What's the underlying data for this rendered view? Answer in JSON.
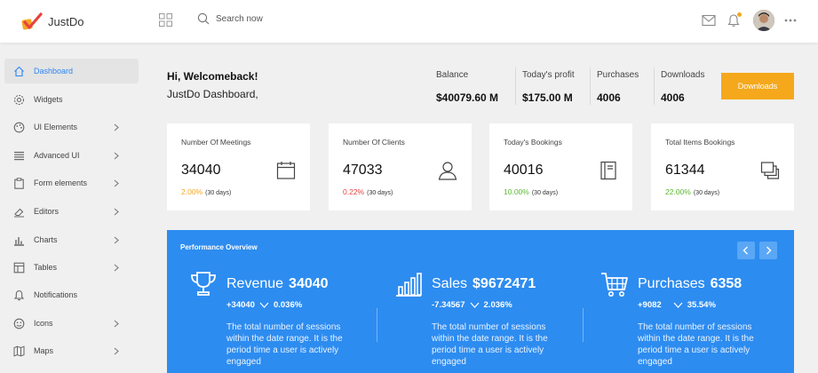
{
  "brand": {
    "name": "JustDo"
  },
  "search": {
    "placeholder": "Search now"
  },
  "sidebar": {
    "items": [
      {
        "label": "Dashboard",
        "icon": "home-icon"
      },
      {
        "label": "Widgets",
        "icon": "gear-icon"
      },
      {
        "label": "UI Elements",
        "icon": "palette-icon"
      },
      {
        "label": "Advanced UI",
        "icon": "list-icon"
      },
      {
        "label": "Form elements",
        "icon": "clipboard-icon"
      },
      {
        "label": "Editors",
        "icon": "eraser-icon"
      },
      {
        "label": "Charts",
        "icon": "bar-chart-icon"
      },
      {
        "label": "Tables",
        "icon": "table-icon"
      },
      {
        "label": "Notifications",
        "icon": "bell-icon"
      },
      {
        "label": "Icons",
        "icon": "emoji-icon"
      },
      {
        "label": "Maps",
        "icon": "map-icon"
      }
    ]
  },
  "welcome": {
    "greeting": "Hi, Welcomeback!",
    "subtitle": "JustDo Dashboard,"
  },
  "stats": [
    {
      "label": "Balance",
      "value": "$40079.60 M"
    },
    {
      "label": "Today's profit",
      "value": "$175.00 M"
    },
    {
      "label": "Purchases",
      "value": "4006"
    },
    {
      "label": "Downloads",
      "value": "4006"
    }
  ],
  "downloads_button": "Downloads",
  "cards": [
    {
      "title": "Number Of Meetings",
      "value": "34040",
      "change": "2.00%",
      "period": "(30 days)",
      "color": "#f5a623",
      "icon": "calendar-icon"
    },
    {
      "title": "Number Of Clients",
      "value": "47033",
      "change": "0.22%",
      "period": "(30 days)",
      "color": "#e8413e",
      "icon": "user-icon"
    },
    {
      "title": "Today's Bookings",
      "value": "40016",
      "change": "10.00%",
      "period": "(30 days)",
      "color": "#58b82c",
      "icon": "book-icon"
    },
    {
      "title": "Total Items Bookings",
      "value": "61344",
      "change": "22.00%",
      "period": "(30 days)",
      "color": "#58b82c",
      "icon": "layers-icon"
    }
  ],
  "performance": {
    "title": "Performance Overview",
    "metrics": [
      {
        "name": "Revenue",
        "value": "34040",
        "change": "+34040",
        "percent": "0.036%",
        "icon": "trophy-icon",
        "description": "The total number of sessions within the date range. It is the period time a user is actively engaged"
      },
      {
        "name": "Sales",
        "value": "$9672471",
        "change": "-7.34567",
        "percent": "2.036%",
        "icon": "bar-chart-icon",
        "description": "The total number of sessions within the date range. It is the period time a user is actively engaged"
      },
      {
        "name": "Purchases",
        "value": "6358",
        "change": "+9082",
        "percent": "35.54%",
        "icon": "cart-icon",
        "description": "The total number of sessions within the date range. It is the period time a user is actively engaged"
      }
    ]
  },
  "colors": {
    "accent": "#2d8cf0",
    "button": "#f5a81c",
    "active_text": "#2e86f3"
  }
}
